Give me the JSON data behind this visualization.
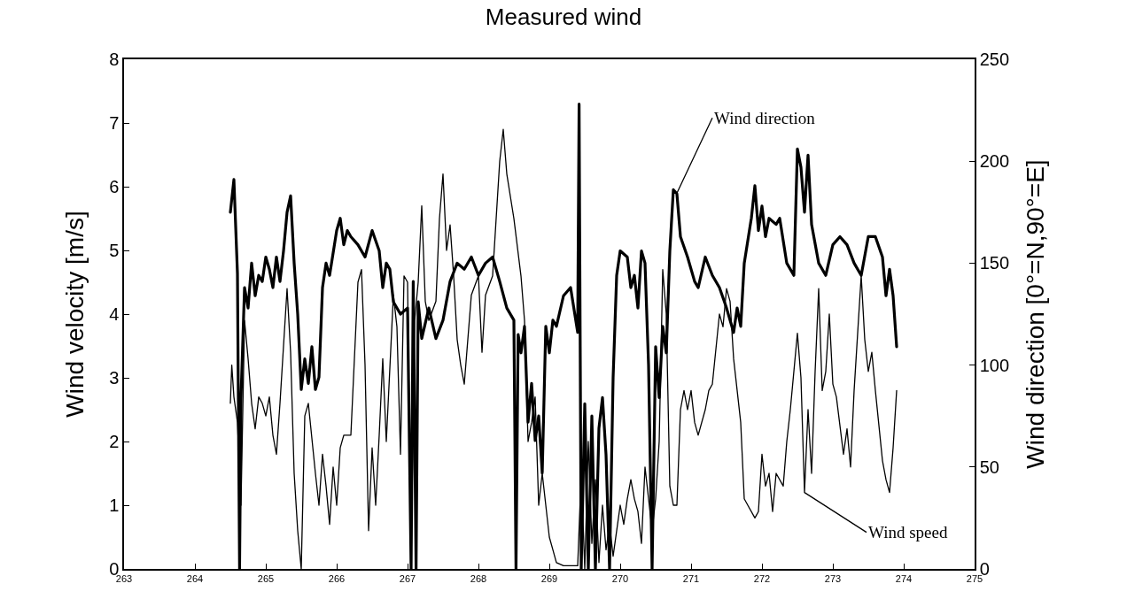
{
  "chart_data": {
    "type": "line",
    "title": "Measured wind",
    "ylabel": "Wind velocity [m/s]",
    "y2label": "Wind direction [0°=N,90°=E]",
    "xlim": [
      263,
      275
    ],
    "xticks": [
      263,
      264,
      265,
      266,
      267,
      268,
      269,
      270,
      271,
      272,
      273,
      274,
      275
    ],
    "ylim": [
      0,
      8
    ],
    "yticks": [
      0,
      1,
      2,
      3,
      4,
      5,
      6,
      7,
      8
    ],
    "y2lim": [
      0,
      250
    ],
    "y2ticks": [
      0,
      50,
      100,
      150,
      200,
      250
    ],
    "marker": "none",
    "line_style": "solid",
    "annotations": [
      {
        "text": "Wind direction",
        "x": 270.8,
        "y": 5.9
      },
      {
        "text": "Wind speed",
        "x": 272.6,
        "y": 1.2
      }
    ],
    "series": [
      {
        "color": "#000000",
        "axis": "y2",
        "x": [
          264.5,
          264.55,
          264.6,
          264.63,
          264.65,
          264.7,
          264.75,
          264.8,
          264.85,
          264.9,
          264.95,
          265.0,
          265.05,
          265.1,
          265.15,
          265.2,
          265.25,
          265.3,
          265.35,
          265.4,
          265.45,
          265.5,
          265.55,
          265.6,
          265.65,
          265.7,
          265.75,
          265.8,
          265.85,
          265.9,
          266.0,
          266.05,
          266.1,
          266.15,
          266.2,
          266.3,
          266.4,
          266.5,
          266.6,
          266.65,
          266.7,
          266.75,
          266.8,
          266.9,
          267.0,
          267.05,
          267.08,
          267.12,
          267.15,
          267.2,
          267.3,
          267.4,
          267.5,
          267.6,
          267.7,
          267.8,
          267.9,
          268.0,
          268.1,
          268.2,
          268.3,
          268.4,
          268.5,
          268.53,
          268.56,
          268.6,
          268.65,
          268.7,
          268.75,
          268.8,
          268.85,
          268.9,
          268.95,
          269.0,
          269.05,
          269.1,
          269.2,
          269.3,
          269.4,
          269.42,
          269.45,
          269.5,
          269.55,
          269.6,
          269.65,
          269.7,
          269.75,
          269.8,
          269.85,
          269.9,
          269.95,
          270.0,
          270.1,
          270.15,
          270.2,
          270.25,
          270.3,
          270.35,
          270.4,
          270.45,
          270.5,
          270.55,
          270.6,
          270.65,
          270.7,
          270.75,
          270.8,
          270.85,
          270.95,
          271.05,
          271.1,
          271.2,
          271.3,
          271.4,
          271.5,
          271.6,
          271.65,
          271.7,
          271.75,
          271.85,
          271.9,
          271.95,
          272.0,
          272.05,
          272.1,
          272.2,
          272.25,
          272.35,
          272.45,
          272.5,
          272.55,
          272.6,
          272.65,
          272.7,
          272.8,
          272.9,
          273.0,
          273.1,
          273.2,
          273.3,
          273.4,
          273.5,
          273.6,
          273.7,
          273.75,
          273.8,
          273.85,
          273.9
        ],
        "values": [
          175,
          191,
          145,
          0,
          84,
          138,
          128,
          150,
          134,
          144,
          141,
          153,
          147,
          138,
          153,
          141,
          156,
          175,
          183,
          150,
          125,
          88,
          103,
          91,
          109,
          88,
          94,
          138,
          150,
          144,
          166,
          172,
          159,
          166,
          163,
          159,
          153,
          166,
          156,
          138,
          150,
          147,
          131,
          125,
          128,
          0,
          141,
          0,
          131,
          113,
          128,
          113,
          122,
          141,
          150,
          147,
          153,
          144,
          150,
          153,
          141,
          128,
          122,
          0,
          115,
          106,
          119,
          72,
          91,
          63,
          75,
          47,
          119,
          106,
          122,
          119,
          134,
          138,
          116,
          228,
          0,
          81,
          0,
          75,
          0,
          69,
          84,
          56,
          0,
          94,
          144,
          156,
          153,
          138,
          144,
          128,
          156,
          150,
          100,
          0,
          109,
          84,
          119,
          106,
          156,
          186,
          184,
          163,
          153,
          141,
          138,
          153,
          144,
          138,
          128,
          116,
          128,
          119,
          150,
          172,
          188,
          166,
          178,
          163,
          172,
          169,
          172,
          150,
          144,
          206,
          197,
          175,
          203,
          169,
          150,
          144,
          159,
          163,
          159,
          150,
          144,
          163,
          163,
          153,
          134,
          147,
          134,
          109
        ]
      },
      {
        "color": "#000000",
        "x": [
          264.5,
          264.52,
          264.55,
          264.6,
          264.65,
          264.7,
          264.75,
          264.8,
          264.85,
          264.9,
          264.95,
          265.0,
          265.05,
          265.1,
          265.15,
          265.2,
          265.25,
          265.3,
          265.35,
          265.4,
          265.45,
          265.5,
          265.55,
          265.6,
          265.7,
          265.75,
          265.8,
          265.85,
          265.9,
          265.95,
          266.0,
          266.05,
          266.1,
          266.2,
          266.3,
          266.35,
          266.4,
          266.45,
          266.5,
          266.55,
          266.6,
          266.65,
          266.7,
          266.8,
          266.85,
          266.9,
          266.95,
          267.0,
          267.05,
          267.1,
          267.15,
          267.2,
          267.25,
          267.3,
          267.4,
          267.45,
          267.5,
          267.55,
          267.6,
          267.65,
          267.7,
          267.75,
          267.8,
          267.9,
          268.0,
          268.05,
          268.1,
          268.2,
          268.3,
          268.35,
          268.4,
          268.5,
          268.6,
          268.65,
          268.7,
          268.75,
          268.8,
          268.85,
          268.9,
          268.95,
          269.0,
          269.05,
          269.1,
          269.2,
          269.4,
          269.45,
          269.5,
          269.55,
          269.6,
          269.65,
          269.7,
          269.75,
          269.8,
          269.85,
          269.9,
          269.95,
          270.0,
          270.05,
          270.1,
          270.15,
          270.2,
          270.25,
          270.3,
          270.35,
          270.4,
          270.45,
          270.5,
          270.55,
          270.6,
          270.65,
          270.7,
          270.75,
          270.8,
          270.85,
          270.9,
          270.95,
          271.0,
          271.05,
          271.1,
          271.2,
          271.25,
          271.3,
          271.4,
          271.45,
          271.5,
          271.55,
          271.6,
          271.7,
          271.75,
          271.8,
          271.9,
          271.95,
          272.0,
          272.05,
          272.1,
          272.15,
          272.2,
          272.3,
          272.35,
          272.4,
          272.5,
          272.55,
          272.6,
          272.65,
          272.7,
          272.75,
          272.8,
          272.85,
          272.9,
          272.95,
          273.0,
          273.05,
          273.15,
          273.2,
          273.25,
          273.3,
          273.4,
          273.45,
          273.5,
          273.55,
          273.6,
          273.7,
          273.75,
          273.8,
          273.85,
          273.9
        ],
        "values": [
          2.6,
          3.2,
          2.7,
          2.3,
          1.0,
          3.9,
          3.3,
          2.6,
          2.2,
          2.7,
          2.6,
          2.4,
          2.7,
          2.1,
          1.8,
          2.6,
          3.5,
          4.4,
          3.4,
          1.5,
          0.6,
          0.0,
          2.4,
          2.6,
          1.5,
          1.0,
          1.8,
          1.3,
          0.7,
          1.6,
          1.0,
          1.9,
          2.1,
          2.1,
          4.5,
          4.7,
          3.2,
          0.6,
          1.9,
          1.0,
          2.1,
          3.3,
          2.0,
          4.3,
          3.8,
          1.8,
          4.6,
          4.5,
          0.0,
          3.9,
          4.5,
          5.7,
          4.2,
          3.9,
          4.2,
          5.5,
          6.2,
          5.0,
          5.4,
          4.6,
          3.6,
          3.2,
          2.9,
          4.3,
          4.6,
          3.4,
          4.3,
          4.6,
          6.4,
          6.9,
          6.2,
          5.5,
          4.6,
          3.9,
          2.0,
          2.3,
          2.7,
          1.0,
          1.5,
          1.0,
          0.5,
          0.3,
          0.1,
          0.05,
          0.05,
          1.5,
          0.0,
          2.0,
          0.4,
          1.4,
          0.1,
          1.0,
          0.3,
          0.7,
          0.2,
          0.6,
          1.0,
          0.7,
          1.1,
          1.4,
          1.1,
          0.9,
          0.4,
          1.6,
          1.1,
          0.6,
          1.1,
          2.0,
          4.7,
          4.0,
          1.3,
          1.0,
          1.0,
          2.5,
          2.8,
          2.5,
          2.8,
          2.3,
          2.1,
          2.5,
          2.8,
          2.9,
          4.0,
          3.8,
          4.4,
          4.2,
          3.3,
          2.3,
          1.1,
          1.0,
          0.8,
          0.9,
          1.8,
          1.3,
          1.5,
          0.9,
          1.5,
          1.3,
          2.0,
          2.5,
          3.7,
          3.0,
          1.2,
          2.5,
          1.5,
          3.1,
          4.4,
          2.8,
          3.1,
          4.0,
          2.9,
          2.7,
          1.8,
          2.2,
          1.6,
          2.8,
          4.6,
          3.6,
          3.1,
          3.4,
          2.8,
          1.7,
          1.4,
          1.2,
          1.9,
          2.8
        ]
      }
    ]
  }
}
